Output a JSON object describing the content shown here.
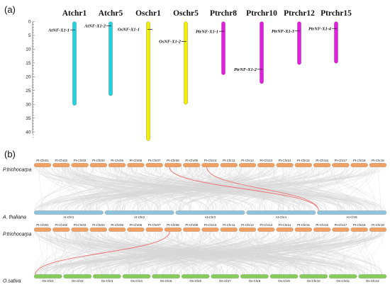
{
  "panel_a": {
    "label": "(a)",
    "axis": {
      "min": 0,
      "max": 40,
      "ticks": [
        0,
        5,
        10,
        15,
        20,
        25,
        30,
        35,
        40
      ]
    },
    "chromosomes": [
      {
        "name": "Atchr1",
        "length": 30.4,
        "color": "#22d3de"
      },
      {
        "name": "Atchr5",
        "length": 26.9,
        "color": "#22d3de"
      },
      {
        "name": "Oschr1",
        "length": 43.2,
        "color": "#f0f000"
      },
      {
        "name": "Oschr5",
        "length": 30.0,
        "color": "#f0f000"
      },
      {
        "name": "Ptrchr8",
        "length": 19.3,
        "color": "#e21ee0"
      },
      {
        "name": "Ptrchr10",
        "length": 22.5,
        "color": "#e21ee0"
      },
      {
        "name": "Ptrchr12",
        "length": 15.6,
        "color": "#e21ee0"
      },
      {
        "name": "Ptrchr15",
        "length": 15.1,
        "color": "#e21ee0"
      }
    ],
    "genes": [
      {
        "name": "AtNF-X1-1",
        "chromosome": "Atchr1",
        "position": 3.0,
        "side": "left"
      },
      {
        "name": "AtNF-X1-2",
        "chromosome": "Atchr5",
        "position": 1.5,
        "side": "left"
      },
      {
        "name": "OsNF-X1-1",
        "chromosome": "Oschr1",
        "position": 2.8,
        "side": "right"
      },
      {
        "name": "OsNF-X1-2",
        "chromosome": "Oschr5",
        "position": 7.2,
        "side": "left"
      },
      {
        "name": "PtrNF-X1-1",
        "chromosome": "Ptrchr8",
        "position": 3.5,
        "side": "left"
      },
      {
        "name": "PtrNF-X1-2",
        "chromosome": "Ptrchr10",
        "position": 17.3,
        "side": "left"
      },
      {
        "name": "PtrNF-X1-3",
        "chromosome": "Ptrchr12",
        "position": 3.4,
        "side": "left"
      },
      {
        "name": "PtrNF-X1-4",
        "chromosome": "Ptrchr15",
        "position": 2.5,
        "side": "left"
      }
    ]
  },
  "panel_b": {
    "label": "(b)",
    "colors": {
      "poplar": "#f0a062",
      "arabidopsis": "#8fc3dc",
      "rice": "#86cc5c",
      "background_links": "#d6d6d6",
      "highlight_links": "#ef6e6e"
    },
    "tracks": [
      {
        "species": "P.trichocarpa",
        "color": "#f0a062",
        "chromosomes": [
          "Pt-Chr01",
          "Pt-Chr02",
          "Pt-Chr03",
          "Pt-Chr04",
          "Pt-Chr05",
          "Pt-Chr06",
          "Pt-Chr07",
          "Pt-Chr08",
          "Pt-Chr09",
          "Pt-Chr10",
          "Pt-Chr11",
          "Pt-Chr12",
          "Pt-Chr13",
          "Pt-Chr14",
          "Pt-Chr15",
          "Pt-Chr16",
          "Pt-Chr17",
          "Pt-Chr18",
          "Pt-Chr19"
        ]
      },
      {
        "species": "A. thaliana",
        "color": "#8fc3dc",
        "chromosomes": [
          "At-Chr1",
          "At-Chr2",
          "At-Chr3",
          "At-Chr4",
          "At-Chr5"
        ]
      },
      {
        "species": "P.trichocarpa",
        "color": "#f0a062",
        "chromosomes": [
          "Pt-Chr01",
          "Pt-Chr02",
          "Pt-Chr03",
          "Pt-Chr04",
          "Pt-Chr05",
          "Pt-Chr06",
          "Pt-Chr07",
          "Pt-Chr08",
          "Pt-Chr09",
          "Pt-Chr10",
          "Pt-Chr11",
          "Pt-Chr12",
          "Pt-Chr13",
          "Pt-Chr14",
          "Pt-Chr15",
          "Pt-Chr16",
          "Pt-Chr17",
          "Pt-Chr18",
          "Pt-Chr19"
        ]
      },
      {
        "species": "O.sativa",
        "color": "#86cc5c",
        "chromosomes": [
          "Os-Chr1",
          "Os-Chr2",
          "Os-Chr3",
          "Os-Chr4",
          "Os-Chr5",
          "Os-Chr6",
          "Os-Chr7",
          "Os-Chr8",
          "Os-Chr9",
          "Os-Chr10",
          "Os-Chr11",
          "Os-Chr12"
        ]
      }
    ],
    "highlighted_links": [
      {
        "from": "Pt-Chr08",
        "to": "At-Chr5"
      },
      {
        "from": "Pt-Chr10",
        "to": "At-Chr5"
      },
      {
        "from": "Pt-Chr08",
        "to": "Os-Chr1"
      }
    ]
  }
}
